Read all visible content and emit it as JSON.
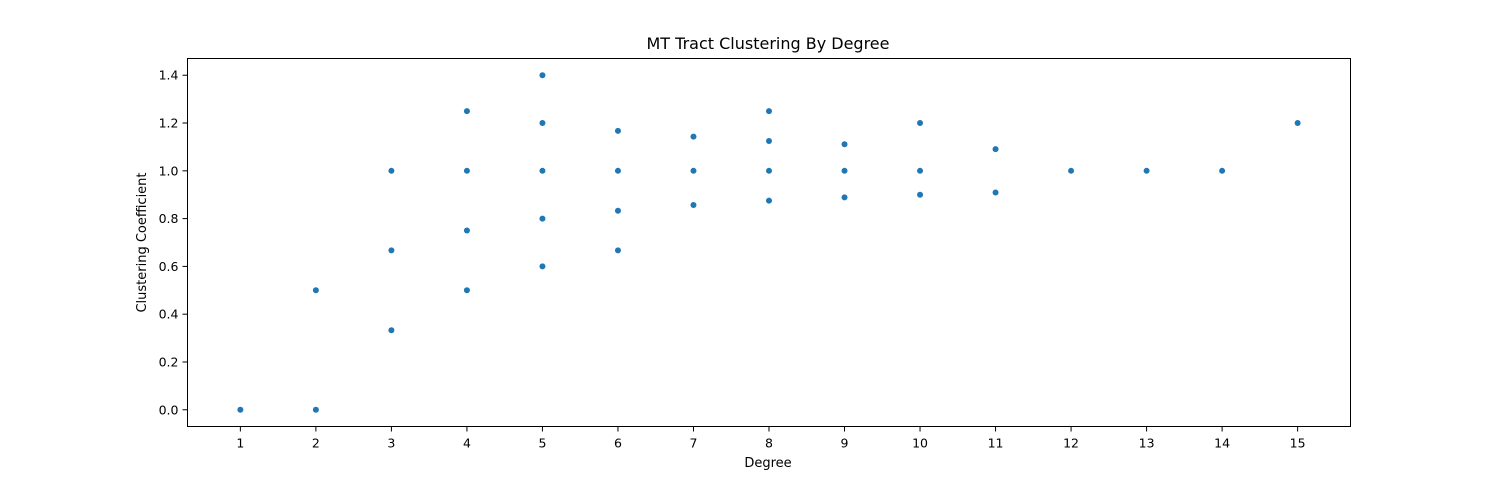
{
  "chart_data": {
    "type": "scatter",
    "title": "MT Tract Clustering By Degree",
    "xlabel": "Degree",
    "ylabel": "Clustering Coefficient",
    "xlim": [
      0.3,
      15.7
    ],
    "ylim": [
      -0.07,
      1.47
    ],
    "xticks": [
      1,
      2,
      3,
      4,
      5,
      6,
      7,
      8,
      9,
      10,
      11,
      12,
      13,
      14,
      15
    ],
    "yticks": [
      0.0,
      0.2,
      0.4,
      0.6,
      0.8,
      1.0,
      1.2,
      1.4
    ],
    "ytick_labels": [
      "0.0",
      "0.2",
      "0.4",
      "0.6",
      "0.8",
      "1.0",
      "1.2",
      "1.4"
    ],
    "grid": false,
    "marker_color": "#1f77b4",
    "series": [
      {
        "points": [
          [
            1,
            0.0
          ],
          [
            2,
            0.0
          ],
          [
            2,
            0.5
          ],
          [
            3,
            0.333
          ],
          [
            3,
            0.667
          ],
          [
            3,
            1.0
          ],
          [
            4,
            0.5
          ],
          [
            4,
            0.75
          ],
          [
            4,
            1.0
          ],
          [
            4,
            1.25
          ],
          [
            5,
            0.6
          ],
          [
            5,
            0.8
          ],
          [
            5,
            1.0
          ],
          [
            5,
            1.2
          ],
          [
            5,
            1.4
          ],
          [
            6,
            0.667
          ],
          [
            6,
            0.833
          ],
          [
            6,
            1.0
          ],
          [
            6,
            1.167
          ],
          [
            7,
            0.857
          ],
          [
            7,
            1.0
          ],
          [
            7,
            1.143
          ],
          [
            8,
            0.875
          ],
          [
            8,
            1.0
          ],
          [
            8,
            1.125
          ],
          [
            8,
            1.25
          ],
          [
            9,
            0.889
          ],
          [
            9,
            1.0
          ],
          [
            9,
            1.111
          ],
          [
            10,
            0.9
          ],
          [
            10,
            1.0
          ],
          [
            10,
            1.2
          ],
          [
            11,
            0.909
          ],
          [
            11,
            1.091
          ],
          [
            12,
            1.0
          ],
          [
            13,
            1.0
          ],
          [
            14,
            1.0
          ],
          [
            15,
            1.2
          ]
        ]
      }
    ]
  }
}
